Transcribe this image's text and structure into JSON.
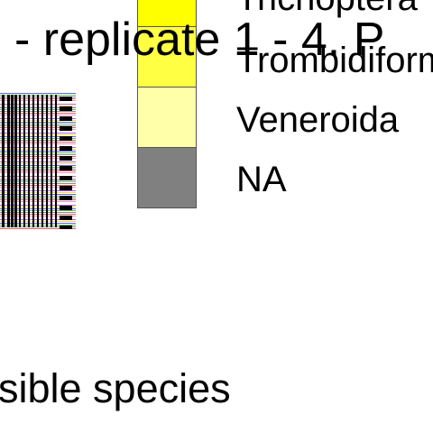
{
  "title": "- replicate 1 - 4. P",
  "bottom_label": "sible species",
  "legend": {
    "items": [
      {
        "label": "Trichoptera",
        "color": "#ffff00"
      },
      {
        "label": "Trombidiform",
        "color": "#ffff44"
      },
      {
        "label": "Veneroida",
        "color": "#ffffaa"
      },
      {
        "label": "NA",
        "color": "#808080"
      }
    ]
  },
  "chart_data": {
    "type": "bar",
    "title": "- replicate 1 - 4. P",
    "xlabel": "sible species",
    "ylabel": "",
    "legend_position": "right",
    "series": [
      {
        "name": "Trichoptera",
        "color": "#ffff00"
      },
      {
        "name": "Trombidiform",
        "color": "#ffff44"
      },
      {
        "name": "Veneroida",
        "color": "#ffffaa"
      },
      {
        "name": "NA",
        "color": "#808080"
      }
    ]
  }
}
